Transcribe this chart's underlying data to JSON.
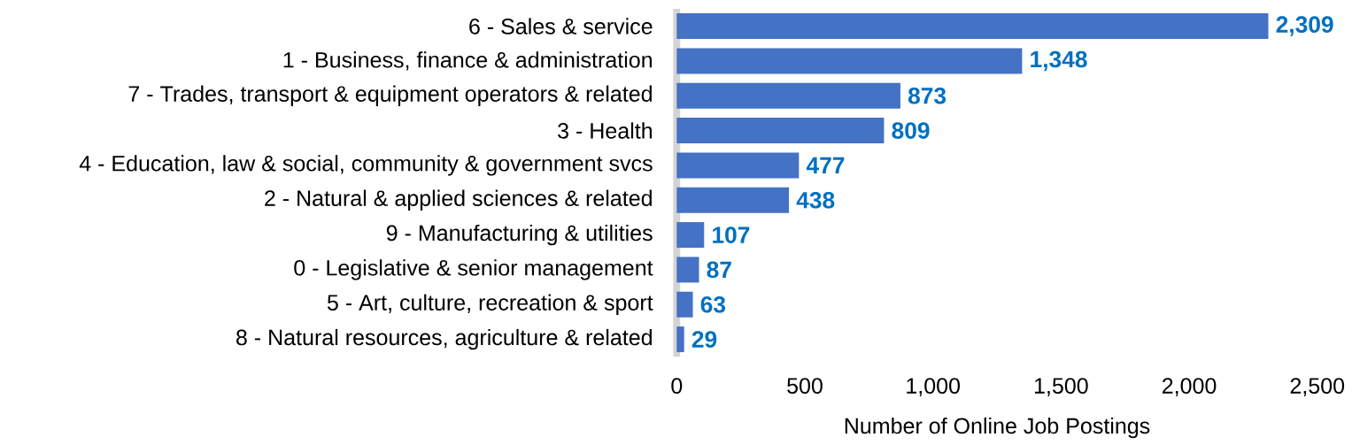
{
  "chart_data": {
    "type": "bar",
    "orientation": "horizontal",
    "xlabel": "Number of Online Job Postings",
    "categories": [
      "6 - Sales & service",
      "1 - Business, finance & administration",
      "7 - Trades, transport & equipment operators & related",
      "3 - Health",
      "4 - Education, law & social, community & government svcs",
      "2 - Natural & applied sciences & related",
      "9 - Manufacturing & utilities",
      "0 - Legislative & senior management",
      "5 - Art, culture, recreation & sport",
      "8 - Natural resources, agriculture & related"
    ],
    "values": [
      2309,
      1348,
      873,
      809,
      477,
      438,
      107,
      87,
      63,
      29
    ],
    "value_labels": [
      "2,309",
      "1,348",
      "873",
      "809",
      "477",
      "438",
      "107",
      "87",
      "63",
      "29"
    ],
    "color": "#4472c4",
    "xlim": [
      0,
      2500
    ],
    "xticks": [
      0,
      500,
      {
        "value": 1000,
        "label": "1,000"
      },
      {
        "value": 1500,
        "label": "1,500"
      },
      {
        "value": 2000,
        "label": "2,000"
      },
      {
        "value": 2500,
        "label": "2,500"
      }
    ],
    "grid": false
  }
}
